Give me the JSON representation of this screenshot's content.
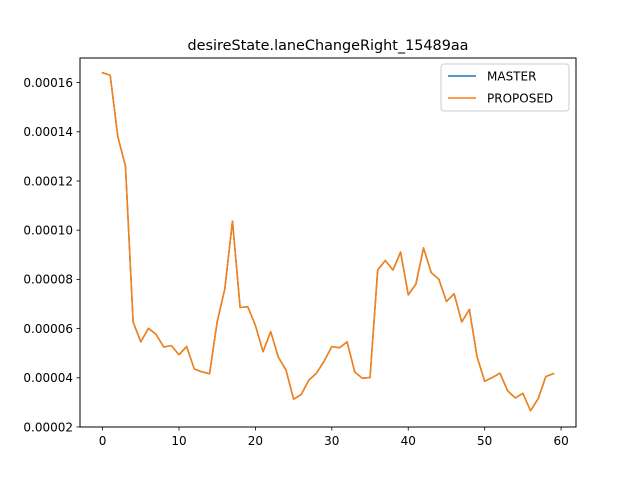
{
  "chart_data": {
    "type": "line",
    "title": "desireState.laneChangeRight_15489aa",
    "xlabel": "",
    "ylabel": "",
    "xlim": [
      -2.95,
      61.95
    ],
    "ylim": [
      2e-05,
      0.00017
    ],
    "x_ticks": [
      0,
      10,
      20,
      30,
      40,
      50,
      60
    ],
    "y_ticks": [
      2e-05,
      4e-05,
      6e-05,
      8e-05,
      0.0001,
      0.00012,
      0.00014,
      0.00016
    ],
    "x_tick_labels": [
      "0",
      "10",
      "20",
      "30",
      "40",
      "50",
      "60"
    ],
    "y_tick_labels": [
      "0.00002",
      "0.00004",
      "0.00006",
      "0.00008",
      "0.00010",
      "0.00012",
      "0.00014",
      "0.00016"
    ],
    "grid": false,
    "legend_position": "upper right",
    "x": [
      0,
      1,
      2,
      3,
      4,
      5,
      6,
      7,
      8,
      9,
      10,
      11,
      12,
      13,
      14,
      15,
      16,
      17,
      18,
      19,
      20,
      21,
      22,
      23,
      24,
      25,
      26,
      27,
      28,
      29,
      30,
      31,
      32,
      33,
      34,
      35,
      36,
      37,
      38,
      39,
      40,
      41,
      42,
      43,
      44,
      45,
      46,
      47,
      48,
      49,
      50,
      51,
      52,
      53,
      54,
      55,
      56,
      57,
      58,
      59
    ],
    "series": [
      {
        "name": "MASTER",
        "color": "#1f77b4",
        "values": [
          0.000164,
          0.000163,
          0.000138,
          0.000126,
          6.27e-05,
          5.46e-05,
          6.01e-05,
          5.77e-05,
          5.25e-05,
          5.31e-05,
          4.94e-05,
          5.27e-05,
          4.36e-05,
          4.24e-05,
          4.17e-05,
          6.27e-05,
          7.62e-05,
          0.0001037,
          6.86e-05,
          6.89e-05,
          6.13e-05,
          5.06e-05,
          5.88e-05,
          4.84e-05,
          4.32e-05,
          3.13e-05,
          3.32e-05,
          3.91e-05,
          4.19e-05,
          4.68e-05,
          5.27e-05,
          5.22e-05,
          5.46e-05,
          4.24e-05,
          3.98e-05,
          4.01e-05,
          8.38e-05,
          8.77e-05,
          8.38e-05,
          9.11e-05,
          7.37e-05,
          7.81e-05,
          9.28e-05,
          8.28e-05,
          8.01e-05,
          7.1e-05,
          7.42e-05,
          6.27e-05,
          6.78e-05,
          4.86e-05,
          3.86e-05,
          4.01e-05,
          4.19e-05,
          3.47e-05,
          3.18e-05,
          3.37e-05,
          2.66e-05,
          3.15e-05,
          4.05e-05,
          4.17e-05
        ]
      },
      {
        "name": "PROPOSED",
        "color": "#ff7f0e",
        "values": [
          0.000164,
          0.000163,
          0.000138,
          0.000126,
          6.27e-05,
          5.46e-05,
          6.01e-05,
          5.77e-05,
          5.25e-05,
          5.31e-05,
          4.94e-05,
          5.27e-05,
          4.36e-05,
          4.24e-05,
          4.17e-05,
          6.27e-05,
          7.62e-05,
          0.0001037,
          6.86e-05,
          6.89e-05,
          6.13e-05,
          5.06e-05,
          5.88e-05,
          4.84e-05,
          4.32e-05,
          3.13e-05,
          3.32e-05,
          3.91e-05,
          4.19e-05,
          4.68e-05,
          5.27e-05,
          5.22e-05,
          5.46e-05,
          4.24e-05,
          3.98e-05,
          4.01e-05,
          8.38e-05,
          8.77e-05,
          8.38e-05,
          9.11e-05,
          7.37e-05,
          7.81e-05,
          9.28e-05,
          8.28e-05,
          8.01e-05,
          7.1e-05,
          7.42e-05,
          6.27e-05,
          6.78e-05,
          4.86e-05,
          3.86e-05,
          4.01e-05,
          4.19e-05,
          3.47e-05,
          3.18e-05,
          3.37e-05,
          2.66e-05,
          3.15e-05,
          4.05e-05,
          4.17e-05
        ]
      }
    ]
  }
}
